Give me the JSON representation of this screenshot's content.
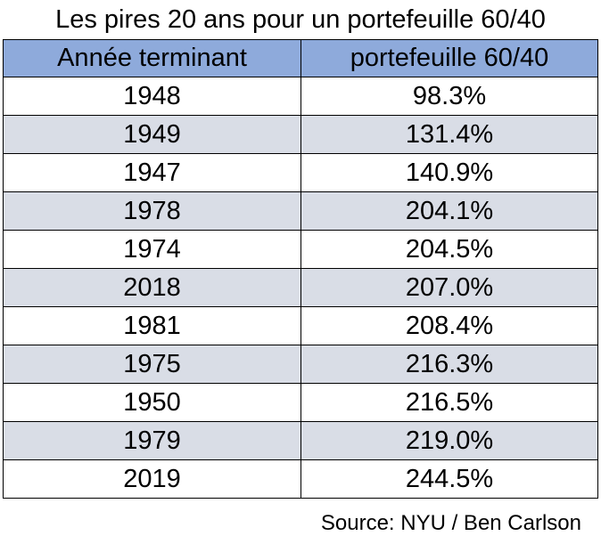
{
  "chart_data": {
    "type": "table",
    "title": "Les pires 20 ans pour un portefeuille 60/40",
    "columns": [
      "Année terminant",
      "portefeuille 60/40"
    ],
    "rows": [
      {
        "year": "1948",
        "value": "98.3%"
      },
      {
        "year": "1949",
        "value": "131.4%"
      },
      {
        "year": "1947",
        "value": "140.9%"
      },
      {
        "year": "1978",
        "value": "204.1%"
      },
      {
        "year": "1974",
        "value": "204.5%"
      },
      {
        "year": "2018",
        "value": "207.0%"
      },
      {
        "year": "1981",
        "value": "208.4%"
      },
      {
        "year": "1975",
        "value": "216.3%"
      },
      {
        "year": "1950",
        "value": "216.5%"
      },
      {
        "year": "1979",
        "value": "219.0%"
      },
      {
        "year": "2019",
        "value": "244.5%"
      }
    ],
    "source": "Source: NYU / Ben Carlson",
    "colors": {
      "header_background": "#8eaadb",
      "stripe_background": "#d9dde6",
      "plain_background": "#ffffff",
      "border": "#000000"
    }
  }
}
